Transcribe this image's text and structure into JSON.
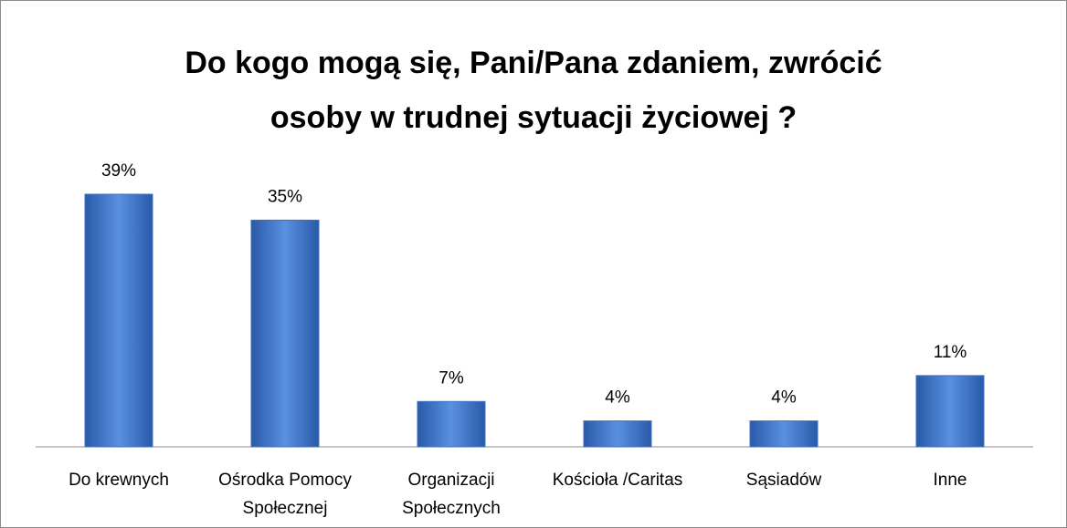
{
  "chart_data": {
    "type": "bar",
    "title": "Do kogo mogą się, Pani/Pana zdaniem, zwrócić\nosoby w trudnej sytuacji życiowej ?",
    "categories": [
      "Do krewnych",
      "Ośrodka Pomocy\nSpołecznej",
      "Organizacji\nSpołecznych",
      "Kościoła /Caritas",
      "Sąsiadów",
      "Inne"
    ],
    "values": [
      39,
      35,
      7,
      4,
      4,
      11
    ],
    "value_labels": [
      "39%",
      "35%",
      "7%",
      "4%",
      "4%",
      "11%"
    ],
    "color": "#3a70c4"
  }
}
